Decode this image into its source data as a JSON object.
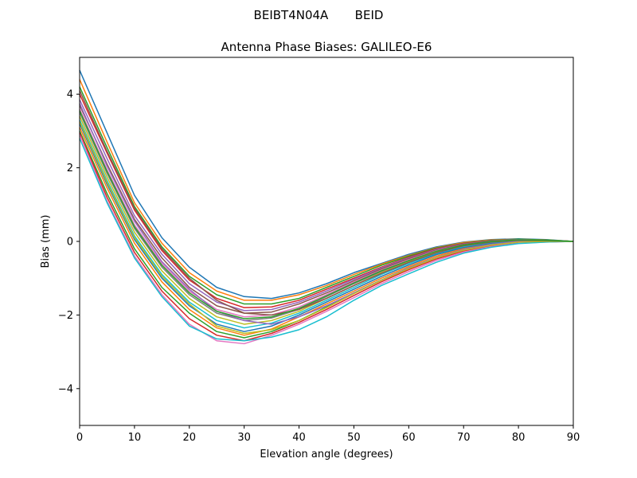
{
  "suptitle": "BEIBT4N04A       BEID",
  "chart_data": {
    "type": "line",
    "title": "Antenna Phase Biases: GALILEO-E6",
    "xlabel": "Elevation angle (degrees)",
    "ylabel": "Bias (mm)",
    "xlim": [
      0,
      90
    ],
    "ylim": [
      -5,
      5
    ],
    "xticks": [
      0,
      10,
      20,
      30,
      40,
      50,
      60,
      70,
      80,
      90
    ],
    "yticks": [
      -4,
      -2,
      0,
      2,
      4
    ],
    "xtick_labels": [
      "0",
      "10",
      "20",
      "30",
      "40",
      "50",
      "60",
      "70",
      "80",
      "90"
    ],
    "ytick_labels": [
      "−4",
      "−2",
      "0",
      "2",
      "4"
    ],
    "grid": false,
    "legend": "none",
    "x": [
      0,
      5,
      10,
      15,
      20,
      25,
      30,
      35,
      40,
      45,
      50,
      55,
      60,
      65,
      70,
      75,
      80,
      85,
      90
    ],
    "series": [
      {
        "color": "#1f77b4",
        "values": [
          4.65,
          2.95,
          1.25,
          0.1,
          -0.7,
          -1.25,
          -1.5,
          -1.55,
          -1.4,
          -1.15,
          -0.85,
          -0.6,
          -0.35,
          -0.15,
          -0.02,
          0.05,
          0.07,
          0.05,
          0.0
        ]
      },
      {
        "color": "#ff7f0e",
        "values": [
          4.4,
          2.7,
          1.05,
          -0.05,
          -0.85,
          -1.35,
          -1.6,
          -1.6,
          -1.45,
          -1.2,
          -0.9,
          -0.62,
          -0.38,
          -0.17,
          -0.03,
          0.04,
          0.06,
          0.04,
          0.0
        ]
      },
      {
        "color": "#2ca02c",
        "values": [
          4.2,
          2.55,
          0.95,
          -0.15,
          -0.95,
          -1.45,
          -1.7,
          -1.7,
          -1.55,
          -1.25,
          -0.95,
          -0.65,
          -0.4,
          -0.18,
          -0.05,
          0.03,
          0.06,
          0.04,
          0.0
        ]
      },
      {
        "color": "#d62728",
        "values": [
          4.0,
          2.4,
          0.85,
          -0.25,
          -1.05,
          -1.55,
          -1.8,
          -1.78,
          -1.6,
          -1.3,
          -1.0,
          -0.7,
          -0.43,
          -0.2,
          -0.06,
          0.02,
          0.05,
          0.03,
          0.0
        ]
      },
      {
        "color": "#9467bd",
        "values": [
          3.85,
          2.25,
          0.7,
          -0.35,
          -1.15,
          -1.65,
          -1.88,
          -1.85,
          -1.65,
          -1.35,
          -1.03,
          -0.72,
          -0.45,
          -0.22,
          -0.07,
          0.01,
          0.05,
          0.03,
          0.0
        ]
      },
      {
        "color": "#8c564b",
        "values": [
          3.7,
          2.1,
          0.6,
          -0.45,
          -1.25,
          -1.75,
          -1.95,
          -1.92,
          -1.7,
          -1.4,
          -1.07,
          -0.75,
          -0.47,
          -0.24,
          -0.08,
          0.0,
          0.04,
          0.03,
          0.0
        ]
      },
      {
        "color": "#e377c2",
        "values": [
          3.6,
          1.95,
          0.45,
          -0.6,
          -1.35,
          -1.85,
          -2.05,
          -2.0,
          -1.78,
          -1.45,
          -1.1,
          -0.78,
          -0.5,
          -0.26,
          -0.1,
          -0.01,
          0.03,
          0.02,
          0.0
        ]
      },
      {
        "color": "#7f7f7f",
        "values": [
          3.5,
          1.85,
          0.35,
          -0.7,
          -1.45,
          -1.95,
          -2.15,
          -2.08,
          -1.85,
          -1.5,
          -1.15,
          -0.82,
          -0.53,
          -0.28,
          -0.11,
          -0.02,
          0.02,
          0.02,
          0.0
        ]
      },
      {
        "color": "#bcbd22",
        "values": [
          3.4,
          1.75,
          0.25,
          -0.8,
          -1.55,
          -2.05,
          -2.25,
          -2.15,
          -1.9,
          -1.55,
          -1.2,
          -0.85,
          -0.56,
          -0.3,
          -0.13,
          -0.03,
          0.01,
          0.01,
          0.0
        ]
      },
      {
        "color": "#17becf",
        "values": [
          3.3,
          1.65,
          0.15,
          -0.9,
          -1.65,
          -2.15,
          -2.35,
          -2.22,
          -1.95,
          -1.6,
          -1.25,
          -0.9,
          -0.6,
          -0.33,
          -0.15,
          -0.05,
          0.0,
          0.01,
          0.0
        ]
      },
      {
        "color": "#1f77b4",
        "values": [
          3.2,
          1.55,
          0.05,
          -1.0,
          -1.75,
          -2.25,
          -2.45,
          -2.3,
          -2.0,
          -1.65,
          -1.3,
          -0.95,
          -0.64,
          -0.36,
          -0.17,
          -0.06,
          -0.01,
          0.0,
          0.0
        ]
      },
      {
        "color": "#ff7f0e",
        "values": [
          3.1,
          1.45,
          -0.05,
          -1.1,
          -1.85,
          -2.35,
          -2.55,
          -2.38,
          -2.05,
          -1.7,
          -1.35,
          -1.0,
          -0.68,
          -0.4,
          -0.2,
          -0.08,
          -0.02,
          0.0,
          0.0
        ]
      },
      {
        "color": "#2ca02c",
        "values": [
          3.0,
          1.3,
          -0.2,
          -1.25,
          -1.95,
          -2.45,
          -2.62,
          -2.45,
          -2.15,
          -1.78,
          -1.4,
          -1.05,
          -0.72,
          -0.44,
          -0.23,
          -0.1,
          -0.03,
          -0.01,
          0.0
        ]
      },
      {
        "color": "#d62728",
        "values": [
          2.95,
          1.2,
          -0.3,
          -1.35,
          -2.1,
          -2.55,
          -2.7,
          -2.5,
          -2.2,
          -1.85,
          -1.47,
          -1.1,
          -0.77,
          -0.48,
          -0.26,
          -0.12,
          -0.04,
          -0.01,
          0.0
        ]
      },
      {
        "color": "#e377c2",
        "values": [
          2.9,
          1.1,
          -0.4,
          -1.45,
          -2.25,
          -2.7,
          -2.78,
          -2.55,
          -2.25,
          -1.9,
          -1.53,
          -1.15,
          -0.82,
          -0.52,
          -0.29,
          -0.14,
          -0.05,
          -0.02,
          0.0
        ]
      },
      {
        "color": "#17becf",
        "values": [
          2.8,
          1.05,
          -0.45,
          -1.5,
          -2.3,
          -2.65,
          -2.7,
          -2.6,
          -2.4,
          -2.05,
          -1.6,
          -1.2,
          -0.88,
          -0.57,
          -0.32,
          -0.16,
          -0.06,
          -0.02,
          0.0
        ]
      },
      {
        "color": "#9467bd",
        "values": [
          3.75,
          2.05,
          0.55,
          -0.55,
          -1.3,
          -1.9,
          -2.15,
          -2.25,
          -2.05,
          -1.75,
          -1.4,
          -1.05,
          -0.72,
          -0.44,
          -0.22,
          -0.08,
          0.0,
          0.02,
          0.0
        ]
      },
      {
        "color": "#bcbd22",
        "values": [
          3.25,
          1.6,
          0.1,
          -0.95,
          -1.7,
          -2.3,
          -2.5,
          -2.4,
          -2.15,
          -1.8,
          -1.42,
          -1.06,
          -0.74,
          -0.45,
          -0.24,
          -0.1,
          -0.02,
          0.0,
          0.0
        ]
      },
      {
        "color": "#8c564b",
        "values": [
          4.1,
          2.45,
          0.9,
          -0.2,
          -1.0,
          -1.6,
          -1.95,
          -2.0,
          -1.85,
          -1.55,
          -1.2,
          -0.87,
          -0.57,
          -0.31,
          -0.12,
          -0.02,
          0.03,
          0.02,
          0.0
        ]
      },
      {
        "color": "#2ca02c",
        "values": [
          3.55,
          1.9,
          0.4,
          -0.65,
          -1.4,
          -1.9,
          -2.1,
          -2.05,
          -1.82,
          -1.48,
          -1.13,
          -0.8,
          -0.52,
          -0.27,
          -0.1,
          0.0,
          0.04,
          0.03,
          0.0
        ]
      }
    ]
  }
}
